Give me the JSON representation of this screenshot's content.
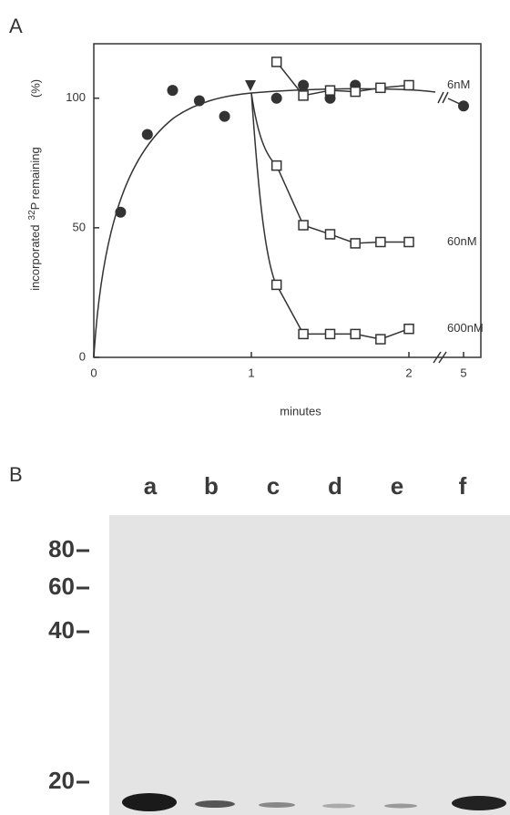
{
  "panel_a": {
    "label": "A"
  },
  "chart_data": {
    "type": "scatter",
    "xlabel": "minutes",
    "ylabel": {
      "before": "incorporated",
      "sup": "32",
      "after": "P remaining",
      "unit": "(%)"
    },
    "xlim": [
      0,
      5
    ],
    "xticks": [
      0,
      1,
      2,
      5
    ],
    "ylim": [
      0,
      121
    ],
    "yticks": [
      0,
      50,
      100
    ],
    "axis_break": true,
    "series": [
      {
        "marker": "circle",
        "color": "#333333",
        "x": [
          0.17,
          0.34,
          0.5,
          0.67,
          0.83,
          1.16,
          1.33,
          1.5,
          1.66,
          5
        ],
        "values": [
          56,
          86,
          103,
          99,
          93,
          100,
          105,
          100,
          105,
          97
        ]
      },
      {
        "name": "6nM",
        "marker": "square",
        "color": "#333333",
        "x": [
          1.16,
          1.33,
          1.5,
          1.66,
          1.82,
          2
        ],
        "values": [
          114,
          101,
          103,
          102.5,
          104,
          105
        ]
      },
      {
        "name": "60nM",
        "marker": "square",
        "color": "#333333",
        "x": [
          1.16,
          1.33,
          1.5,
          1.66,
          1.82,
          2
        ],
        "values": [
          74,
          51,
          47.5,
          44,
          44.5,
          44.5
        ]
      },
      {
        "name": "600nM",
        "marker": "square",
        "color": "#333333",
        "x": [
          1.16,
          1.33,
          1.5,
          1.66,
          1.82,
          2
        ],
        "values": [
          28,
          9,
          9,
          9,
          7,
          11
        ]
      }
    ]
  },
  "panel_b": {
    "label": "B",
    "lanes": [
      "a",
      "b",
      "c",
      "d",
      "e",
      "f"
    ],
    "markers": [
      "80",
      "60",
      "40",
      "20"
    ]
  }
}
